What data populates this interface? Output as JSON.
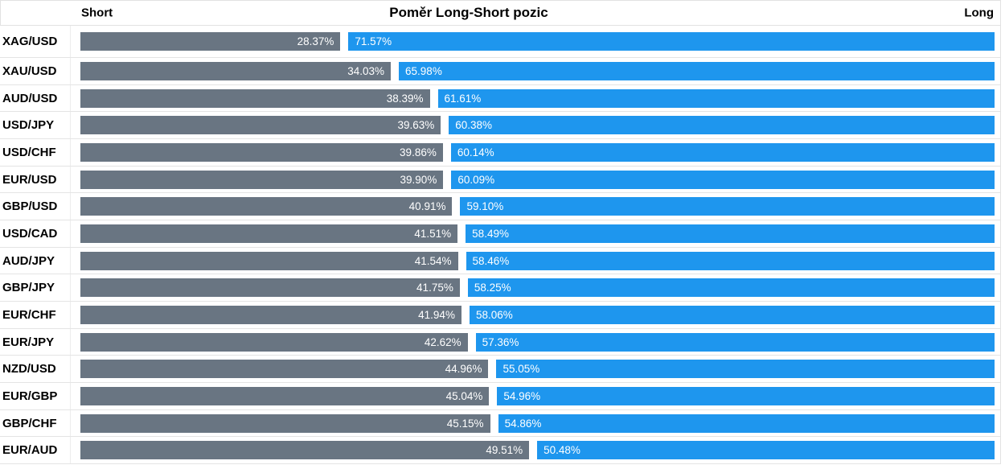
{
  "chart_data": {
    "type": "bar",
    "orientation": "horizontal",
    "stacked": true,
    "title": "Poměr Long-Short pozic",
    "left_header": "Short",
    "right_header": "Long",
    "value_format": "percent_2dp",
    "value_suffix": "%",
    "value_range": [
      0,
      100
    ],
    "categories": [
      "XAG/USD",
      "XAU/USD",
      "AUD/USD",
      "USD/JPY",
      "USD/CHF",
      "EUR/USD",
      "GBP/USD",
      "USD/CAD",
      "AUD/JPY",
      "GBP/JPY",
      "EUR/CHF",
      "EUR/JPY",
      "NZD/USD",
      "EUR/GBP",
      "GBP/CHF",
      "EUR/AUD"
    ],
    "series": [
      {
        "name": "Short",
        "color": "#697582",
        "values": [
          28.37,
          34.03,
          38.39,
          39.63,
          39.86,
          39.9,
          40.91,
          41.51,
          41.54,
          41.75,
          41.94,
          42.62,
          44.96,
          45.04,
          45.15,
          49.51
        ]
      },
      {
        "name": "Long",
        "color": "#1e96ee",
        "values": [
          71.57,
          65.98,
          61.61,
          60.38,
          60.14,
          60.09,
          59.1,
          58.49,
          58.46,
          58.25,
          58.06,
          57.36,
          55.05,
          54.96,
          54.86,
          50.48
        ]
      }
    ],
    "legend": "none",
    "grid": "off"
  },
  "colors": {
    "short_bar": "#697582",
    "long_bar": "#1e96ee",
    "row_border": "#e4e4e4",
    "header_border": "#e2e2e2",
    "value_text": "#ffffff",
    "label_text": "#000000",
    "background": "#ffffff"
  }
}
